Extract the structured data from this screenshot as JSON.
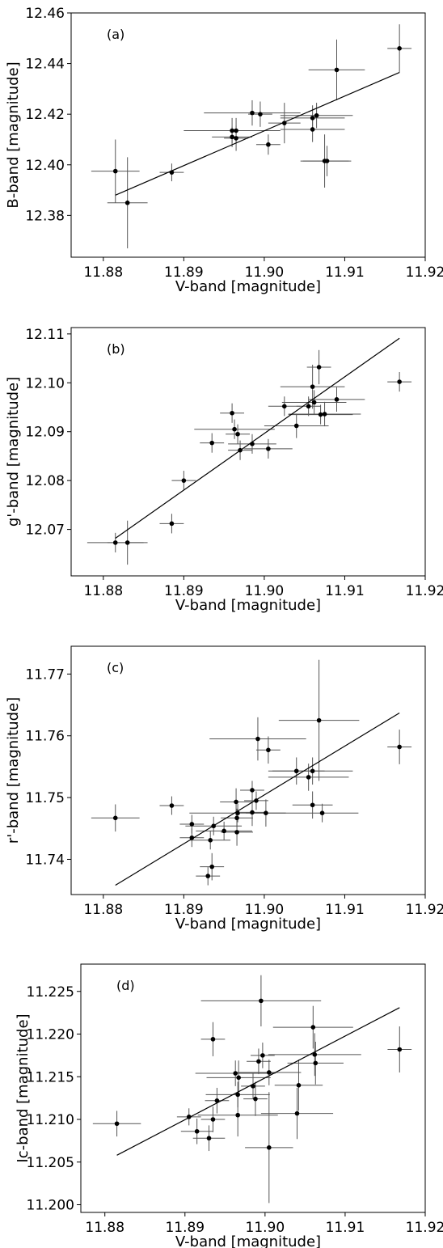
{
  "chart_data": [
    {
      "type": "scatter",
      "panel_label": "(a)",
      "xlabel": "V-band [magnitude]",
      "ylabel": "B-band [magnitude]",
      "xlim": [
        11.876,
        11.92
      ],
      "ylim": [
        12.3635,
        12.46
      ],
      "xticks": [
        11.88,
        11.89,
        11.9,
        11.91,
        11.92
      ],
      "xtick_labels": [
        "11.88",
        "11.89",
        "11.90",
        "11.91",
        "11.92"
      ],
      "yticks": [
        12.38,
        12.4,
        12.42,
        12.44,
        12.46
      ],
      "ytick_labels": [
        "12.38",
        "12.40",
        "12.42",
        "12.44",
        "12.46"
      ],
      "points": [
        {
          "x": 11.8815,
          "y": 12.3975,
          "xerr": 0.003,
          "yerr": 0.0125
        },
        {
          "x": 11.883,
          "y": 12.385,
          "xerr": 0.0025,
          "yerr": 0.018
        },
        {
          "x": 11.8885,
          "y": 12.397,
          "xerr": 0.0015,
          "yerr": 0.0035
        },
        {
          "x": 11.896,
          "y": 12.4135,
          "xerr": 0.006,
          "yerr": 0.005
        },
        {
          "x": 11.896,
          "y": 12.411,
          "xerr": 0.0025,
          "yerr": 0.004
        },
        {
          "x": 11.8965,
          "y": 12.4135,
          "xerr": 0.0015,
          "yerr": 0.005
        },
        {
          "x": 11.8965,
          "y": 12.4105,
          "xerr": 0.0015,
          "yerr": 0.005
        },
        {
          "x": 11.8985,
          "y": 12.4205,
          "xerr": 0.006,
          "yerr": 0.005
        },
        {
          "x": 11.8995,
          "y": 12.42,
          "xerr": 0.0015,
          "yerr": 0.005
        },
        {
          "x": 11.9005,
          "y": 12.408,
          "xerr": 0.0015,
          "yerr": 0.004
        },
        {
          "x": 11.9025,
          "y": 12.4165,
          "xerr": 0.002,
          "yerr": 0.008
        },
        {
          "x": 11.906,
          "y": 12.4185,
          "xerr": 0.004,
          "yerr": 0.005
        },
        {
          "x": 11.906,
          "y": 12.414,
          "xerr": 0.004,
          "yerr": 0.005
        },
        {
          "x": 11.9065,
          "y": 12.4195,
          "xerr": 0.0045,
          "yerr": 0.005
        },
        {
          "x": 11.9075,
          "y": 12.4015,
          "xerr": 0.003,
          "yerr": 0.0105
        },
        {
          "x": 11.9078,
          "y": 12.4015,
          "xerr": 0.003,
          "yerr": 0.006
        },
        {
          "x": 11.909,
          "y": 12.4375,
          "xerr": 0.0035,
          "yerr": 0.012
        },
        {
          "x": 11.9168,
          "y": 12.446,
          "xerr": 0.0015,
          "yerr": 0.0095
        }
      ],
      "fit_line": {
        "x": [
          11.8815,
          11.9168
        ],
        "y": [
          12.388,
          12.4365
        ]
      }
    },
    {
      "type": "scatter",
      "panel_label": "(b)",
      "xlabel": "V-band [magnitude]",
      "ylabel": "g'-band [magnitude]",
      "xlim": [
        11.876,
        11.92
      ],
      "ylim": [
        12.0605,
        12.1113
      ],
      "xticks": [
        11.88,
        11.89,
        11.9,
        11.91,
        11.92
      ],
      "xtick_labels": [
        "11.88",
        "11.89",
        "11.90",
        "11.91",
        "11.92"
      ],
      "yticks": [
        12.07,
        12.08,
        12.09,
        12.1,
        12.11
      ],
      "ytick_labels": [
        "12.07",
        "12.08",
        "12.09",
        "12.10",
        "12.11"
      ],
      "points": [
        {
          "x": 11.8815,
          "y": 12.0673,
          "xerr": 0.0035,
          "yerr": 0.002
        },
        {
          "x": 11.883,
          "y": 12.0673,
          "xerr": 0.0025,
          "yerr": 0.0045
        },
        {
          "x": 11.8885,
          "y": 12.0712,
          "xerr": 0.0015,
          "yerr": 0.002
        },
        {
          "x": 11.89,
          "y": 12.08,
          "xerr": 0.0015,
          "yerr": 0.002
        },
        {
          "x": 11.8935,
          "y": 12.0877,
          "xerr": 0.0015,
          "yerr": 0.002
        },
        {
          "x": 11.896,
          "y": 12.0938,
          "xerr": 0.0015,
          "yerr": 0.002
        },
        {
          "x": 11.8963,
          "y": 12.0905,
          "xerr": 0.005,
          "yerr": 0.002
        },
        {
          "x": 11.8967,
          "y": 12.0895,
          "xerr": 0.0015,
          "yerr": 0.002
        },
        {
          "x": 11.897,
          "y": 12.0862,
          "xerr": 0.0015,
          "yerr": 0.002
        },
        {
          "x": 11.8985,
          "y": 12.0875,
          "xerr": 0.003,
          "yerr": 0.002
        },
        {
          "x": 11.9005,
          "y": 12.0865,
          "xerr": 0.003,
          "yerr": 0.002
        },
        {
          "x": 11.9025,
          "y": 12.0952,
          "xerr": 0.002,
          "yerr": 0.002
        },
        {
          "x": 11.904,
          "y": 12.0912,
          "xerr": 0.004,
          "yerr": 0.0025
        },
        {
          "x": 11.9055,
          "y": 12.0952,
          "xerr": 0.0015,
          "yerr": 0.002
        },
        {
          "x": 11.906,
          "y": 12.0992,
          "xerr": 0.004,
          "yerr": 0.0045
        },
        {
          "x": 11.9062,
          "y": 12.096,
          "xerr": 0.004,
          "yerr": 0.0025
        },
        {
          "x": 11.9068,
          "y": 12.1032,
          "xerr": 0.0015,
          "yerr": 0.0035
        },
        {
          "x": 11.907,
          "y": 12.0935,
          "xerr": 0.004,
          "yerr": 0.002
        },
        {
          "x": 11.9075,
          "y": 12.0936,
          "xerr": 0.0045,
          "yerr": 0.0025
        },
        {
          "x": 11.909,
          "y": 12.0966,
          "xerr": 0.0035,
          "yerr": 0.0025
        },
        {
          "x": 11.9168,
          "y": 12.1002,
          "xerr": 0.0015,
          "yerr": 0.002
        }
      ],
      "fit_line": {
        "x": [
          11.8815,
          11.9168
        ],
        "y": [
          12.0682,
          12.1091
        ]
      }
    },
    {
      "type": "scatter",
      "panel_label": "(c)",
      "xlabel": "V-band [magnitude]",
      "ylabel": "r'-band [magnitude]",
      "xlim": [
        11.876,
        11.92
      ],
      "ylim": [
        11.7343,
        11.7745
      ],
      "xticks": [
        11.88,
        11.89,
        11.9,
        11.91,
        11.92
      ],
      "xtick_labels": [
        "11.88",
        "11.89",
        "11.90",
        "11.91",
        "11.92"
      ],
      "yticks": [
        11.74,
        11.75,
        11.76,
        11.77
      ],
      "ytick_labels": [
        "11.74",
        "11.75",
        "11.76",
        "11.77"
      ],
      "points": [
        {
          "x": 11.8815,
          "y": 11.7467,
          "xerr": 0.003,
          "yerr": 0.0022
        },
        {
          "x": 11.8885,
          "y": 11.7487,
          "xerr": 0.0015,
          "yerr": 0.0015
        },
        {
          "x": 11.891,
          "y": 11.7457,
          "xerr": 0.0015,
          "yerr": 0.0015
        },
        {
          "x": 11.891,
          "y": 11.7435,
          "xerr": 0.0015,
          "yerr": 0.0015
        },
        {
          "x": 11.893,
          "y": 11.7373,
          "xerr": 0.0015,
          "yerr": 0.0015
        },
        {
          "x": 11.8933,
          "y": 11.7431,
          "xerr": 0.0025,
          "yerr": 0.0015
        },
        {
          "x": 11.8935,
          "y": 11.7388,
          "xerr": 0.0015,
          "yerr": 0.0022
        },
        {
          "x": 11.8937,
          "y": 11.7454,
          "xerr": 0.0035,
          "yerr": 0.0015
        },
        {
          "x": 11.895,
          "y": 11.7446,
          "xerr": 0.0035,
          "yerr": 0.0015
        },
        {
          "x": 11.8965,
          "y": 11.7493,
          "xerr": 0.002,
          "yerr": 0.0022
        },
        {
          "x": 11.8966,
          "y": 11.7444,
          "xerr": 0.002,
          "yerr": 0.0022
        },
        {
          "x": 11.8966,
          "y": 11.7467,
          "xerr": 0.002,
          "yerr": 0.0015
        },
        {
          "x": 11.8967,
          "y": 11.7475,
          "xerr": 0.006,
          "yerr": 0.0015
        },
        {
          "x": 11.8985,
          "y": 11.7512,
          "xerr": 0.0015,
          "yerr": 0.0015
        },
        {
          "x": 11.8985,
          "y": 11.7476,
          "xerr": 0.0015,
          "yerr": 0.0022
        },
        {
          "x": 11.899,
          "y": 11.7495,
          "xerr": 0.0015,
          "yerr": 0.0015
        },
        {
          "x": 11.8992,
          "y": 11.7595,
          "xerr": 0.006,
          "yerr": 0.0035
        },
        {
          "x": 11.9002,
          "y": 11.7475,
          "xerr": 0.0025,
          "yerr": 0.0022
        },
        {
          "x": 11.9005,
          "y": 11.7577,
          "xerr": 0.0015,
          "yerr": 0.0022
        },
        {
          "x": 11.904,
          "y": 11.7543,
          "xerr": 0.0035,
          "yerr": 0.0022
        },
        {
          "x": 11.9055,
          "y": 11.7533,
          "xerr": 0.005,
          "yerr": 0.0022
        },
        {
          "x": 11.906,
          "y": 11.7543,
          "xerr": 0.005,
          "yerr": 0.0022
        },
        {
          "x": 11.906,
          "y": 11.7488,
          "xerr": 0.0025,
          "yerr": 0.0022
        },
        {
          "x": 11.9068,
          "y": 11.7625,
          "xerr": 0.005,
          "yerr": 0.0098
        },
        {
          "x": 11.9072,
          "y": 11.7475,
          "xerr": 0.0045,
          "yerr": 0.0015
        },
        {
          "x": 11.9168,
          "y": 11.7582,
          "xerr": 0.0015,
          "yerr": 0.0028
        }
      ],
      "fit_line": {
        "x": [
          11.8815,
          11.9168
        ],
        "y": [
          11.7358,
          11.7637
        ]
      }
    },
    {
      "type": "scatter",
      "panel_label": "(d)",
      "xlabel": "V-band [magnitude]",
      "ylabel": "Ic-band [magnitude]",
      "xlim": [
        11.877,
        11.92
      ],
      "ylim": [
        11.1991,
        11.2282
      ],
      "xticks": [
        11.88,
        11.89,
        11.9,
        11.91,
        11.92
      ],
      "xtick_labels": [
        "11.88",
        "11.89",
        "11.90",
        "11.91",
        "11.92"
      ],
      "yticks": [
        11.2,
        11.205,
        11.21,
        11.215,
        11.22,
        11.225
      ],
      "ytick_labels": [
        "11.200",
        "11.205",
        "11.210",
        "11.215",
        "11.220",
        "11.225"
      ],
      "points": [
        {
          "x": 11.8815,
          "y": 11.2095,
          "xerr": 0.003,
          "yerr": 0.0015
        },
        {
          "x": 11.8905,
          "y": 11.2103,
          "xerr": 0.0015,
          "yerr": 0.001
        },
        {
          "x": 11.8915,
          "y": 11.2086,
          "xerr": 0.002,
          "yerr": 0.0015
        },
        {
          "x": 11.893,
          "y": 11.2078,
          "xerr": 0.002,
          "yerr": 0.0015
        },
        {
          "x": 11.8935,
          "y": 11.2194,
          "xerr": 0.0015,
          "yerr": 0.002
        },
        {
          "x": 11.8935,
          "y": 11.21,
          "xerr": 0.0015,
          "yerr": 0.0015
        },
        {
          "x": 11.894,
          "y": 11.2122,
          "xerr": 0.0015,
          "yerr": 0.0015
        },
        {
          "x": 11.8963,
          "y": 11.2154,
          "xerr": 0.005,
          "yerr": 0.0015
        },
        {
          "x": 11.8966,
          "y": 11.2129,
          "xerr": 0.004,
          "yerr": 0.0015
        },
        {
          "x": 11.8966,
          "y": 11.2105,
          "xerr": 0.005,
          "yerr": 0.0025
        },
        {
          "x": 11.8967,
          "y": 11.2149,
          "xerr": 0.004,
          "yerr": 0.002
        },
        {
          "x": 11.8985,
          "y": 11.2139,
          "xerr": 0.0015,
          "yerr": 0.0015
        },
        {
          "x": 11.8988,
          "y": 11.2124,
          "xerr": 0.0015,
          "yerr": 0.002
        },
        {
          "x": 11.8992,
          "y": 11.2168,
          "xerr": 0.0015,
          "yerr": 0.0015
        },
        {
          "x": 11.8995,
          "y": 11.2239,
          "xerr": 0.0075,
          "yerr": 0.003
        },
        {
          "x": 11.8997,
          "y": 11.2175,
          "xerr": 0.0015,
          "yerr": 0.0015
        },
        {
          "x": 11.9005,
          "y": 11.2155,
          "xerr": 0.004,
          "yerr": 0.0015
        },
        {
          "x": 11.9005,
          "y": 11.2067,
          "xerr": 0.003,
          "yerr": 0.0065
        },
        {
          "x": 11.904,
          "y": 11.2107,
          "xerr": 0.0045,
          "yerr": 0.003
        },
        {
          "x": 11.9042,
          "y": 11.214,
          "xerr": 0.003,
          "yerr": 0.003
        },
        {
          "x": 11.906,
          "y": 11.2208,
          "xerr": 0.005,
          "yerr": 0.0025
        },
        {
          "x": 11.9062,
          "y": 11.2176,
          "xerr": 0.0058,
          "yerr": 0.0025
        },
        {
          "x": 11.9063,
          "y": 11.2166,
          "xerr": 0.0035,
          "yerr": 0.0025
        },
        {
          "x": 11.9168,
          "y": 11.2182,
          "xerr": 0.0015,
          "yerr": 0.0027
        }
      ],
      "fit_line": {
        "x": [
          11.8815,
          11.9168
        ],
        "y": [
          11.2058,
          11.2231
        ]
      }
    }
  ]
}
